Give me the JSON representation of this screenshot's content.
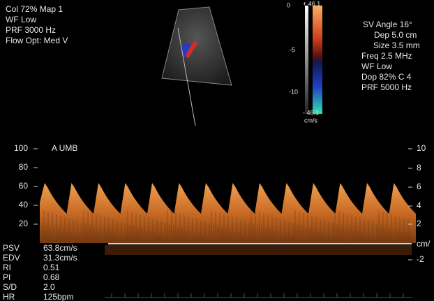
{
  "settings_left": [
    "Col 72%  Map 1",
    "WF Low",
    "PRF 3000  Hz",
    "Flow Opt: Med V"
  ],
  "color_scale": {
    "top": "+ 46.1",
    "bottom": "- 46.1",
    "unit": "cm/s",
    "marks": [
      "0",
      "-5",
      "-10"
    ]
  },
  "settings_right": [
    "SV Angle 16°",
    "Dep 5.0  cm",
    "Size 3.5  mm",
    "Freq 2.5  MHz",
    "WF Low",
    "Dop 82%  C 4",
    "PRF 5000  Hz"
  ],
  "trace_label": "A   UMB",
  "axis_left": [
    100,
    80,
    60,
    40,
    20
  ],
  "axis_right": [
    "10",
    "8",
    "6",
    "4",
    "2",
    "cm/",
    "-2"
  ],
  "measurements": [
    {
      "name": "PSV",
      "value": "63.8cm/s"
    },
    {
      "name": "EDV",
      "value": "31.3cm/s"
    },
    {
      "name": "RI",
      "value": "0.51"
    },
    {
      "name": "PI",
      "value": "0.68"
    },
    {
      "name": "S/D",
      "value": "2.0"
    },
    {
      "name": "HR",
      "value": "125bpm"
    }
  ]
}
